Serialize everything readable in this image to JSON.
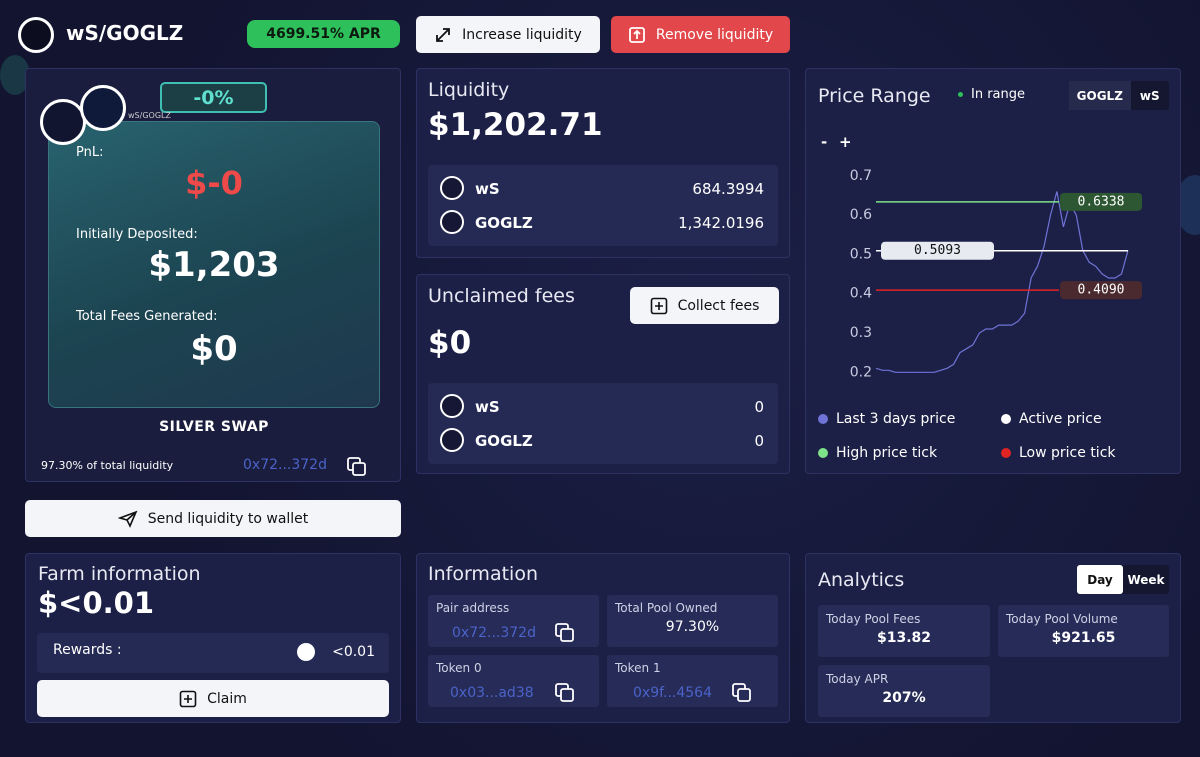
{
  "header": {
    "pair": "wS/GOGLZ",
    "apr": "4699.51% APR",
    "increase": "Increase liquidity",
    "remove": "Remove liquidity"
  },
  "position_card": {
    "change": "-0%",
    "pair": "wS/GOGLZ",
    "pnl_label": "PnL:",
    "pnl": "$-0",
    "deposited_label": "Initially Deposited:",
    "deposited": "$1,203",
    "fees_label": "Total Fees Generated:",
    "fees": "$0",
    "brand": "SILVER SWAP",
    "share": "97.30% of total liquidity",
    "address": "0x72...372d",
    "send": "Send liquidity to wallet"
  },
  "liquidity": {
    "title": "Liquidity",
    "total": "$1,202.71",
    "tokens": [
      {
        "name": "wS",
        "amount": "684.3994"
      },
      {
        "name": "GOGLZ",
        "amount": "1,342.0196"
      }
    ]
  },
  "unclaimed_fees": {
    "title": "Unclaimed fees",
    "button": "Collect fees",
    "total": "$0",
    "tokens": [
      {
        "name": "wS",
        "amount": "0"
      },
      {
        "name": "GOGLZ",
        "amount": "0"
      }
    ]
  },
  "price_range": {
    "title": "Price Range",
    "status": "In range",
    "toggle": [
      "GOGLZ",
      "wS"
    ],
    "zoom": [
      "-",
      "+"
    ]
  },
  "chart_data": {
    "type": "line",
    "ylim": [
      0.165,
      0.725
    ],
    "yticks": [
      0.2,
      0.3,
      0.4,
      0.5,
      0.6,
      0.7
    ],
    "series": [
      {
        "name": "Last 3 days price",
        "color": "#6f73d6",
        "values": [
          0.21,
          0.205,
          0.205,
          0.2,
          0.2,
          0.2,
          0.2,
          0.2,
          0.2,
          0.2,
          0.205,
          0.21,
          0.22,
          0.25,
          0.26,
          0.27,
          0.3,
          0.31,
          0.31,
          0.32,
          0.32,
          0.32,
          0.33,
          0.35,
          0.44,
          0.47,
          0.52,
          0.6,
          0.66,
          0.57,
          0.63,
          0.6,
          0.51,
          0.48,
          0.47,
          0.45,
          0.44,
          0.44,
          0.45,
          0.51
        ]
      }
    ],
    "markers": [
      {
        "name": "Active price",
        "value": 0.5093,
        "color": "#ffffff"
      },
      {
        "name": "High price tick",
        "value": 0.6338,
        "color": "#7ee28a"
      },
      {
        "name": "Low price tick",
        "value": 0.409,
        "value_label": "0.4090",
        "color": "#e02424"
      }
    ]
  },
  "farm": {
    "title": "Farm information",
    "total": "$<0.01",
    "rewards_label": "Rewards :",
    "rewards": "<0.01",
    "claim": "Claim"
  },
  "information": {
    "title": "Information",
    "cells": [
      {
        "label": "Pair address",
        "value": "0x72...372d"
      },
      {
        "label": "Total Pool Owned",
        "value": "97.30%"
      },
      {
        "label": "Token 0",
        "value": "0x03...ad38"
      },
      {
        "label": "Token 1",
        "value": "0x9f...4564"
      }
    ]
  },
  "analytics": {
    "title": "Analytics",
    "toggle": [
      "Day",
      "Week"
    ],
    "cells": [
      {
        "label": "Today Pool Fees",
        "value": "$13.82"
      },
      {
        "label": "Today Pool Volume",
        "value": "$921.65"
      },
      {
        "label": "Today APR",
        "value": "207%"
      }
    ]
  }
}
